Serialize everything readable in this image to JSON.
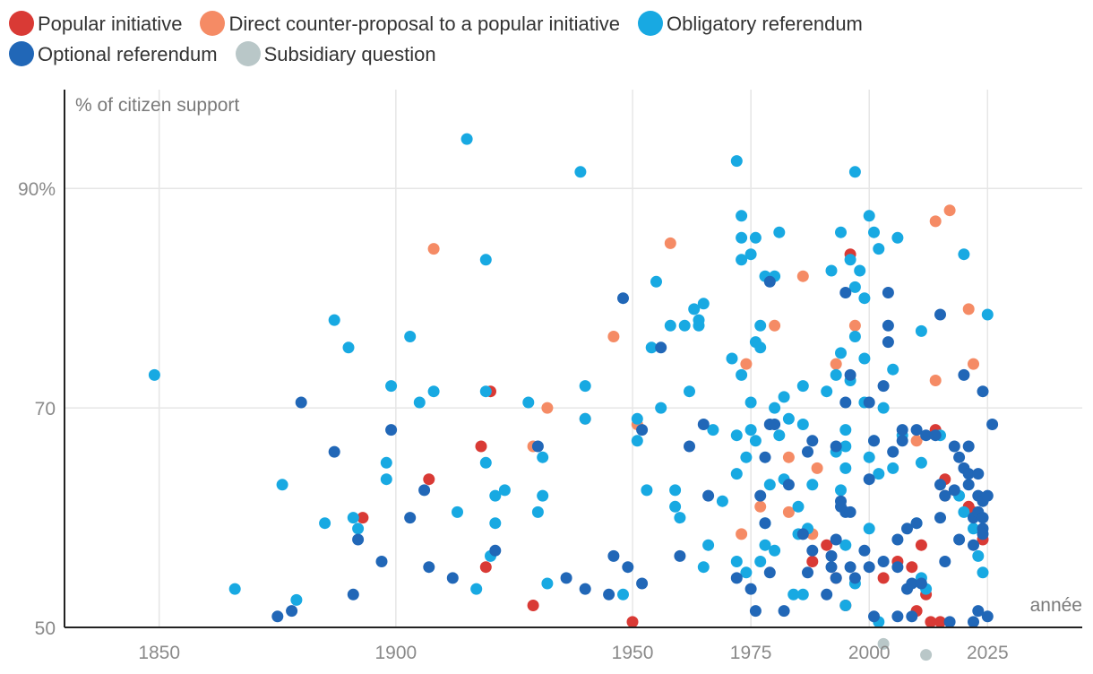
{
  "chart_data": {
    "type": "scatter",
    "title": "",
    "ylabel": "% of citizen support",
    "xlabel": "année",
    "xlim": [
      1830,
      2045
    ],
    "ylim": [
      50,
      99
    ],
    "x_ticks": [
      1850,
      1900,
      1950,
      1975,
      2000,
      2025
    ],
    "y_ticks": [
      {
        "value": 50,
        "label": "50"
      },
      {
        "value": 70,
        "label": "70"
      },
      {
        "value": 90,
        "label": "90%"
      }
    ],
    "grid": "vertical and horizontal light gridlines",
    "legend_position": "top",
    "series": [
      {
        "name": "Popular initiative",
        "color": "#d93a35",
        "points": [
          [
            1893,
            60
          ],
          [
            1907,
            63.5
          ],
          [
            1918,
            66.5
          ],
          [
            1919,
            55.5
          ],
          [
            1920,
            71.5
          ],
          [
            1929,
            52
          ],
          [
            1950,
            50.5
          ],
          [
            1988,
            56
          ],
          [
            1991,
            57.5
          ],
          [
            1993,
            54.5
          ],
          [
            1995,
            52
          ],
          [
            1996,
            84
          ],
          [
            2003,
            54.5
          ],
          [
            2006,
            56
          ],
          [
            2009,
            55.5
          ],
          [
            2010,
            51.5
          ],
          [
            2011,
            57.5
          ],
          [
            2012,
            53
          ],
          [
            2013,
            50.5
          ],
          [
            2014,
            68
          ],
          [
            2015,
            50.5
          ],
          [
            2016,
            63.5
          ],
          [
            2021,
            61
          ],
          [
            2022,
            60.5
          ],
          [
            2024,
            58
          ]
        ]
      },
      {
        "name": "Direct counter-proposal to a popular initiative",
        "color": "#f58b65",
        "points": [
          [
            1908,
            84.5
          ],
          [
            1929,
            66.5
          ],
          [
            1932,
            70
          ],
          [
            1940,
            69
          ],
          [
            1946,
            76.5
          ],
          [
            1951,
            68.5
          ],
          [
            1958,
            85
          ],
          [
            1973,
            58.5
          ],
          [
            1974,
            74
          ],
          [
            1977,
            61
          ],
          [
            1980,
            77.5
          ],
          [
            1983,
            65.5
          ],
          [
            1983,
            60.5
          ],
          [
            1986,
            82
          ],
          [
            1988,
            58.5
          ],
          [
            1989,
            64.5
          ],
          [
            1993,
            74
          ],
          [
            1997,
            77.5
          ],
          [
            2010,
            67
          ],
          [
            2014,
            87
          ],
          [
            2014,
            72.5
          ],
          [
            2016,
            62
          ],
          [
            2017,
            88
          ],
          [
            2021,
            79
          ],
          [
            2022,
            74
          ]
        ]
      },
      {
        "name": "Obligatory referendum",
        "color": "#18a9e2",
        "points": [
          [
            1849,
            73
          ],
          [
            1866,
            53.5
          ],
          [
            1876,
            63
          ],
          [
            1879,
            52.5
          ],
          [
            1885,
            59.5
          ],
          [
            1887,
            78
          ],
          [
            1890,
            75.5
          ],
          [
            1891,
            60
          ],
          [
            1892,
            59
          ],
          [
            1898,
            65
          ],
          [
            1898,
            63.5
          ],
          [
            1899,
            72
          ],
          [
            1903,
            76.5
          ],
          [
            1905,
            70.5
          ],
          [
            1908,
            71.5
          ],
          [
            1913,
            60.5
          ],
          [
            1915,
            94.5
          ],
          [
            1917,
            53.5
          ],
          [
            1919,
            65
          ],
          [
            1919,
            71.5
          ],
          [
            1919,
            83.5
          ],
          [
            1920,
            56.5
          ],
          [
            1921,
            59.5
          ],
          [
            1921,
            62
          ],
          [
            1923,
            62.5
          ],
          [
            1928,
            70.5
          ],
          [
            1930,
            60.5
          ],
          [
            1931,
            65.5
          ],
          [
            1931,
            62
          ],
          [
            1932,
            54
          ],
          [
            1939,
            91.5
          ],
          [
            1940,
            72
          ],
          [
            1940,
            69
          ],
          [
            1948,
            53
          ],
          [
            1951,
            69
          ],
          [
            1951,
            67
          ],
          [
            1953,
            62.5
          ],
          [
            1954,
            75.5
          ],
          [
            1955,
            81.5
          ],
          [
            1956,
            70
          ],
          [
            1958,
            77.5
          ],
          [
            1959,
            62.5
          ],
          [
            1959,
            61
          ],
          [
            1960,
            60
          ],
          [
            1961,
            77.5
          ],
          [
            1962,
            71.5
          ],
          [
            1963,
            79
          ],
          [
            1964,
            77.5
          ],
          [
            1964,
            78
          ],
          [
            1965,
            79.5
          ],
          [
            1965,
            55.5
          ],
          [
            1966,
            57.5
          ],
          [
            1967,
            68
          ],
          [
            1969,
            61.5
          ],
          [
            1971,
            74.5
          ],
          [
            1972,
            56
          ],
          [
            1972,
            64
          ],
          [
            1972,
            92.5
          ],
          [
            1972,
            67.5
          ],
          [
            1973,
            85.5
          ],
          [
            1973,
            87.5
          ],
          [
            1973,
            83.5
          ],
          [
            1973,
            73
          ],
          [
            1974,
            65.5
          ],
          [
            1974,
            55
          ],
          [
            1975,
            84
          ],
          [
            1975,
            70.5
          ],
          [
            1975,
            68
          ],
          [
            1976,
            67
          ],
          [
            1976,
            85.5
          ],
          [
            1976,
            76
          ],
          [
            1977,
            75.5
          ],
          [
            1977,
            56
          ],
          [
            1977,
            77.5
          ],
          [
            1978,
            82
          ],
          [
            1978,
            57.5
          ],
          [
            1978,
            59.5
          ],
          [
            1979,
            63
          ],
          [
            1980,
            70
          ],
          [
            1980,
            82
          ],
          [
            1980,
            57
          ],
          [
            1981,
            86
          ],
          [
            1981,
            67.5
          ],
          [
            1982,
            71
          ],
          [
            1982,
            63.5
          ],
          [
            1983,
            69
          ],
          [
            1984,
            53
          ],
          [
            1985,
            61
          ],
          [
            1985,
            58.5
          ],
          [
            1986,
            68.5
          ],
          [
            1986,
            53
          ],
          [
            1986,
            72
          ],
          [
            1987,
            59
          ],
          [
            1988,
            63
          ],
          [
            1991,
            71.5
          ],
          [
            1992,
            82.5
          ],
          [
            1993,
            73
          ],
          [
            1993,
            66
          ],
          [
            1994,
            75
          ],
          [
            1994,
            86
          ],
          [
            1994,
            62.5
          ],
          [
            1995,
            68
          ],
          [
            1995,
            66.5
          ],
          [
            1995,
            64.5
          ],
          [
            1995,
            57.5
          ],
          [
            1995,
            52
          ],
          [
            1996,
            83.5
          ],
          [
            1996,
            72.5
          ],
          [
            1997,
            91.5
          ],
          [
            1997,
            81
          ],
          [
            1997,
            76.5
          ],
          [
            1997,
            54
          ],
          [
            1998,
            82.5
          ],
          [
            1999,
            80
          ],
          [
            1999,
            74.5
          ],
          [
            1999,
            70.5
          ],
          [
            2000,
            87.5
          ],
          [
            2000,
            59
          ],
          [
            2000,
            65.5
          ],
          [
            2001,
            86
          ],
          [
            2001,
            67
          ],
          [
            2002,
            64
          ],
          [
            2002,
            84.5
          ],
          [
            2002,
            50.5
          ],
          [
            2003,
            70
          ],
          [
            2005,
            64.5
          ],
          [
            2005,
            73.5
          ],
          [
            2006,
            85.5
          ],
          [
            2007,
            67.5
          ],
          [
            2010,
            59.5
          ],
          [
            2011,
            77
          ],
          [
            2011,
            65
          ],
          [
            2011,
            54.5
          ],
          [
            2012,
            53.5
          ],
          [
            2015,
            67.5
          ],
          [
            2019,
            62
          ],
          [
            2020,
            60.5
          ],
          [
            2020,
            84
          ],
          [
            2022,
            59
          ],
          [
            2023,
            56.5
          ],
          [
            2024,
            55
          ],
          [
            2025,
            78.5
          ]
        ]
      },
      {
        "name": "Optional referendum",
        "color": "#2167b7",
        "points": [
          [
            1875,
            51
          ],
          [
            1878,
            51.5
          ],
          [
            1880,
            70.5
          ],
          [
            1887,
            66
          ],
          [
            1891,
            53
          ],
          [
            1892,
            58
          ],
          [
            1897,
            56
          ],
          [
            1899,
            68
          ],
          [
            1903,
            60
          ],
          [
            1906,
            62.5
          ],
          [
            1907,
            55.5
          ],
          [
            1912,
            54.5
          ],
          [
            1921,
            57
          ],
          [
            1930,
            66.5
          ],
          [
            1936,
            54.5
          ],
          [
            1940,
            53.5
          ],
          [
            1945,
            53
          ],
          [
            1946,
            56.5
          ],
          [
            1948,
            80
          ],
          [
            1949,
            55.5
          ],
          [
            1952,
            54
          ],
          [
            1952,
            68
          ],
          [
            1956,
            75.5
          ],
          [
            1960,
            56.5
          ],
          [
            1962,
            66.5
          ],
          [
            1965,
            68.5
          ],
          [
            1966,
            62
          ],
          [
            1972,
            54.5
          ],
          [
            1975,
            53.5
          ],
          [
            1976,
            51.5
          ],
          [
            1977,
            62
          ],
          [
            1978,
            59.5
          ],
          [
            1978,
            65.5
          ],
          [
            1979,
            68.5
          ],
          [
            1979,
            81.5
          ],
          [
            1979,
            55
          ],
          [
            1980,
            68.5
          ],
          [
            1982,
            51.5
          ],
          [
            1983,
            63
          ],
          [
            1986,
            58.5
          ],
          [
            1987,
            55
          ],
          [
            1987,
            66
          ],
          [
            1988,
            67
          ],
          [
            1988,
            57
          ],
          [
            1991,
            53
          ],
          [
            1992,
            56.5
          ],
          [
            1992,
            55.5
          ],
          [
            1993,
            54.5
          ],
          [
            1993,
            58
          ],
          [
            1993,
            66.5
          ],
          [
            1994,
            61.5
          ],
          [
            1994,
            61
          ],
          [
            1995,
            60.5
          ],
          [
            1995,
            70.5
          ],
          [
            1995,
            80.5
          ],
          [
            1996,
            73
          ],
          [
            1996,
            60.5
          ],
          [
            1996,
            55.5
          ],
          [
            1997,
            54.5
          ],
          [
            1999,
            57
          ],
          [
            2000,
            63.5
          ],
          [
            2000,
            55.5
          ],
          [
            2000,
            70.5
          ],
          [
            2001,
            67
          ],
          [
            2001,
            51
          ],
          [
            2003,
            72
          ],
          [
            2003,
            56
          ],
          [
            2004,
            77.5
          ],
          [
            2004,
            76
          ],
          [
            2004,
            80.5
          ],
          [
            2005,
            66
          ],
          [
            2006,
            58
          ],
          [
            2006,
            55.5
          ],
          [
            2006,
            51
          ],
          [
            2007,
            68
          ],
          [
            2007,
            67
          ],
          [
            2008,
            53.5
          ],
          [
            2008,
            59
          ],
          [
            2009,
            54
          ],
          [
            2009,
            51
          ],
          [
            2010,
            68
          ],
          [
            2010,
            59.5
          ],
          [
            2011,
            54
          ],
          [
            2012,
            67.5
          ],
          [
            2014,
            67.5
          ],
          [
            2015,
            78.5
          ],
          [
            2015,
            63
          ],
          [
            2015,
            60
          ],
          [
            2016,
            56
          ],
          [
            2016,
            62
          ],
          [
            2017,
            50.5
          ],
          [
            2018,
            66.5
          ],
          [
            2018,
            62.5
          ],
          [
            2019,
            65.5
          ],
          [
            2019,
            58
          ],
          [
            2020,
            73
          ],
          [
            2020,
            64.5
          ],
          [
            2021,
            66.5
          ],
          [
            2021,
            64
          ],
          [
            2021,
            63
          ],
          [
            2022,
            60
          ],
          [
            2022,
            57.5
          ],
          [
            2022,
            50.5
          ],
          [
            2023,
            51.5
          ],
          [
            2023,
            60.5
          ],
          [
            2023,
            64
          ],
          [
            2023,
            62
          ],
          [
            2024,
            59
          ],
          [
            2024,
            58.5
          ],
          [
            2024,
            71.5
          ],
          [
            2024,
            61.5
          ],
          [
            2024,
            60
          ],
          [
            2025,
            62
          ],
          [
            2025,
            51
          ],
          [
            2026,
            68.5
          ]
        ]
      },
      {
        "name": "Subsidiary question",
        "color": "#b9c7c8",
        "points": [
          [
            2003,
            48.5
          ],
          [
            2012,
            47.5
          ]
        ]
      }
    ]
  }
}
